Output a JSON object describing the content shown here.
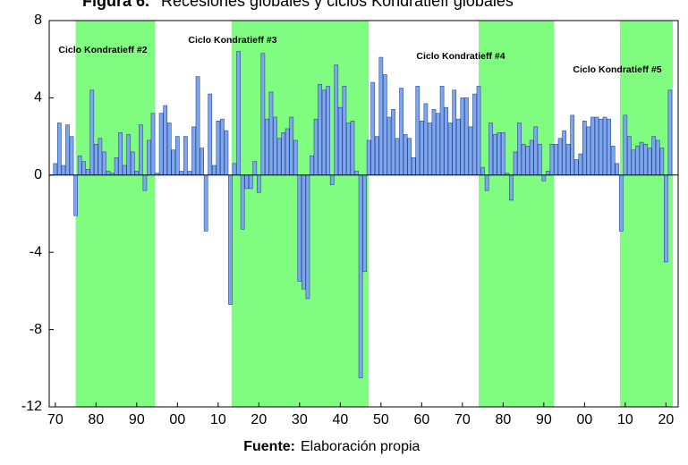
{
  "chart_data": {
    "type": "bar",
    "title_label": "Figura 6.",
    "title": "Recesiones globales y ciclos Kondratieff globales",
    "source_label": "Fuente:",
    "source": "Elaboración propia",
    "x": [
      1870,
      1871,
      1872,
      1873,
      1874,
      1875,
      1876,
      1877,
      1878,
      1879,
      1880,
      1881,
      1882,
      1883,
      1884,
      1885,
      1886,
      1887,
      1888,
      1889,
      1890,
      1891,
      1892,
      1893,
      1894,
      1895,
      1896,
      1897,
      1898,
      1899,
      1900,
      1901,
      1902,
      1903,
      1904,
      1905,
      1906,
      1907,
      1908,
      1909,
      1910,
      1911,
      1912,
      1913,
      1914,
      1915,
      1916,
      1917,
      1918,
      1919,
      1920,
      1921,
      1922,
      1923,
      1924,
      1925,
      1926,
      1927,
      1928,
      1929,
      1930,
      1931,
      1932,
      1933,
      1934,
      1935,
      1936,
      1937,
      1938,
      1939,
      1940,
      1941,
      1942,
      1943,
      1944,
      1945,
      1946,
      1947,
      1948,
      1949,
      1950,
      1951,
      1952,
      1953,
      1954,
      1955,
      1956,
      1957,
      1958,
      1959,
      1960,
      1961,
      1962,
      1963,
      1964,
      1965,
      1966,
      1967,
      1968,
      1969,
      1970,
      1971,
      1972,
      1973,
      1974,
      1975,
      1976,
      1977,
      1978,
      1979,
      1980,
      1981,
      1982,
      1983,
      1984,
      1985,
      1986,
      1987,
      1988,
      1989,
      1990,
      1991,
      1992,
      1993,
      1994,
      1995,
      1996,
      1997,
      1998,
      1999,
      2000,
      2001,
      2002,
      2003,
      2004,
      2005,
      2006,
      2007,
      2008,
      2009,
      2010,
      2011,
      2012,
      2013,
      2014,
      2015,
      2016,
      2017,
      2018,
      2019,
      2020,
      2021
    ],
    "values": [
      0.6,
      2.7,
      0.5,
      2.6,
      2.0,
      -2.1,
      1.0,
      0.7,
      0.3,
      4.4,
      1.6,
      1.9,
      1.2,
      0.2,
      0.1,
      0.9,
      2.2,
      0.5,
      2.1,
      1.2,
      0.2,
      2.6,
      -0.8,
      1.8,
      3.2,
      0.1,
      3.2,
      3.6,
      2.7,
      1.3,
      2.0,
      0.2,
      2.0,
      0.2,
      2.5,
      5.1,
      1.4,
      -2.9,
      4.2,
      0.5,
      2.8,
      2.9,
      2.3,
      -6.7,
      0.6,
      6.4,
      -2.8,
      -0.7,
      -0.7,
      0.7,
      -0.9,
      6.3,
      2.9,
      4.3,
      3.0,
      1.9,
      2.2,
      2.4,
      3.0,
      1.8,
      -5.5,
      -5.9,
      -6.4,
      1.0,
      2.9,
      4.7,
      4.4,
      4.6,
      -0.5,
      5.7,
      3.5,
      4.6,
      2.7,
      2.8,
      0.2,
      -10.5,
      -5.0,
      1.8,
      4.8,
      2.0,
      6.1,
      5.2,
      3.0,
      3.4,
      1.9,
      4.5,
      2.1,
      1.9,
      0.9,
      4.6,
      2.8,
      3.7,
      2.7,
      3.4,
      3.2,
      4.6,
      3.5,
      2.7,
      4.4,
      2.9,
      4.0,
      4.0,
      2.5,
      4.2,
      4.6,
      0.4,
      -0.8,
      2.7,
      2.1,
      2.2,
      2.2,
      0.1,
      -1.3,
      1.2,
      2.7,
      1.6,
      1.5,
      1.8,
      2.5,
      1.6,
      -0.3,
      0.2,
      1.6,
      1.6,
      1.9,
      2.3,
      1.6,
      3.1,
      0.8,
      1.1,
      2.8,
      2.5,
      3.0,
      3.0,
      2.9,
      3.0,
      2.9,
      1.5,
      0.6,
      -2.9,
      3.1,
      2.0,
      1.3,
      1.5,
      1.7,
      1.6,
      1.4,
      2.0,
      1.8,
      1.4,
      -4.5,
      4.4
    ],
    "color": "#7ea6ec",
    "edge_color": "#2a4a9a",
    "xlim": [
      1868.5,
      2023
    ],
    "xticks": [
      {
        "value": 1870,
        "label": "70"
      },
      {
        "value": 1880,
        "label": "80"
      },
      {
        "value": 1890,
        "label": "90"
      },
      {
        "value": 1900,
        "label": "00"
      },
      {
        "value": 1910,
        "label": "10"
      },
      {
        "value": 1920,
        "label": "20"
      },
      {
        "value": 1930,
        "label": "30"
      },
      {
        "value": 1940,
        "label": "40"
      },
      {
        "value": 1950,
        "label": "50"
      },
      {
        "value": 1960,
        "label": "60"
      },
      {
        "value": 1970,
        "label": "70"
      },
      {
        "value": 1980,
        "label": "80"
      },
      {
        "value": 1990,
        "label": "90"
      },
      {
        "value": 2000,
        "label": "00"
      },
      {
        "value": 2010,
        "label": "10"
      },
      {
        "value": 2020,
        "label": "20"
      }
    ],
    "ylim": [
      -12,
      8
    ],
    "yticks": [
      -12,
      -8,
      -4,
      0,
      4,
      8
    ],
    "shade_color": "#80fc80",
    "regions": [
      {
        "start": 1875,
        "end": 1894.5,
        "label": "Ciclo Kondratieff #2"
      },
      {
        "start": 1913.3,
        "end": 1947,
        "label": "Ciclo Kondratieff #3"
      },
      {
        "start": 1974,
        "end": 1992.5,
        "label": "Ciclo Kondratieff #4"
      },
      {
        "start": 2008.7,
        "end": 2021.7,
        "label": "Ciclo Kondratieff #5"
      }
    ]
  }
}
